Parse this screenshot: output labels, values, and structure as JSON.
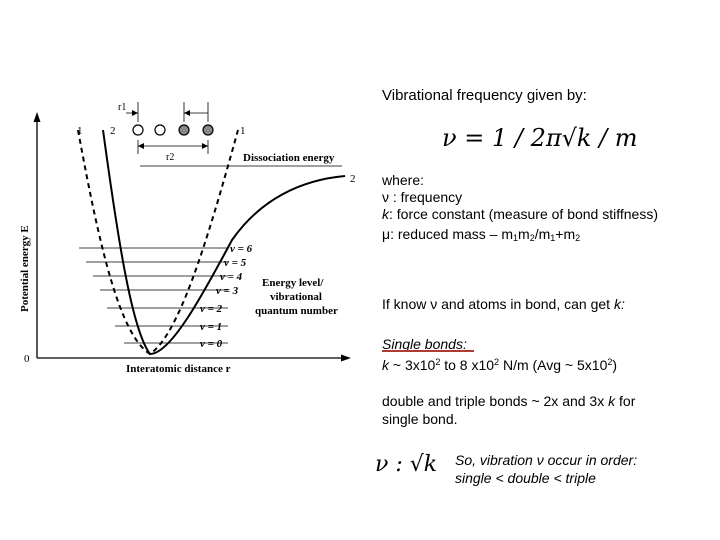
{
  "diagram": {
    "axis_y_label": "Potential energy E",
    "axis_x_label": "Interatomic distance r",
    "origin_label": "0",
    "dissociation_label": "Dissociation energy",
    "energy_level_label_lines": [
      "Energy level/",
      "vibrational",
      "quantum number"
    ],
    "levels": [
      "v = 6",
      "v = 5",
      "v = 4",
      "v = 3",
      "v = 2",
      "v = 1",
      "v = 0"
    ],
    "curve_labels": {
      "left1": "1",
      "left2": "2",
      "right1": "1",
      "right2": "2"
    },
    "r1_label": "r1",
    "r2_label": "r2"
  },
  "text": {
    "heading": "Vibrational frequency given by:",
    "formula": "ν = 1 / 2π√k / m",
    "where": "where:",
    "nu_symbol": "ν",
    "nu_def": " : frequency",
    "k_symbol": "k",
    "k_def": ": force constant (measure of bond stiffness)",
    "mu_symbol": "μ",
    "mu_def": ": reduced mass – m",
    "mu_sub1": "1",
    "mu_m2": "m",
    "mu_sub2": "2",
    "mu_slash": "/m",
    "mu_sub3": "1",
    "mu_plus": "+m",
    "mu_sub4": "2",
    "ifknow_a": "If know ",
    "ifknow_nu": "ν",
    "ifknow_b": " and atoms in bond, can get ",
    "ifknow_k": "k",
    "ifknow_c": ":",
    "single_title": "Single bonds",
    "single_colon": ":",
    "single_k": "k",
    "single_a": " ~ 3x10",
    "single_exp1": "2",
    "single_b": " to 8 x10",
    "single_exp2": "2",
    "single_c": " N/m  (Avg ~ 5x10",
    "single_exp3": "2",
    "single_d": ")",
    "double_line1": "double and triple bonds ~ 2x and 3x ",
    "double_k": "k",
    "double_line1_end": " for",
    "double_line2": "single bond.",
    "prop_formula": "ν : √k",
    "so_a": "So, vibration ",
    "so_nu": "ν",
    "so_b": " occur in order:",
    "so_line2": "single < double < triple"
  },
  "colors": {
    "underline": "#b03a2e",
    "ink": "#000000"
  }
}
